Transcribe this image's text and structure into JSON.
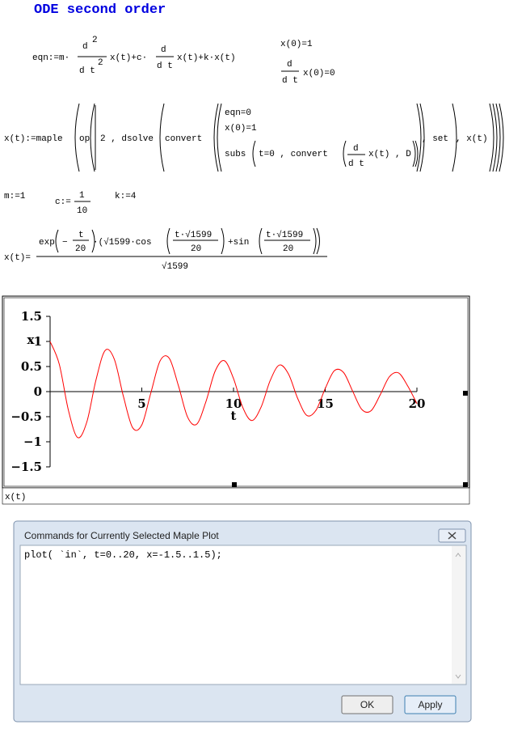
{
  "header": {
    "title": "ODE second order"
  },
  "math": {
    "eqn": {
      "lhs": "eqn:=m·",
      "d2_num": "d",
      "d2_num_exp": "2",
      "d2_den": "d t",
      "d2_den_exp": "2",
      "mid1": "x(t)+c·",
      "d1_num": "d",
      "d1_den": "d t",
      "rest": "x(t)+k·x(t)"
    },
    "ic": {
      "ic1": "x(0)=1",
      "d_num": "d",
      "d_den": "d t",
      "ic2": "x(0)=0"
    },
    "sol": {
      "lhs": "x(t):=maple",
      "op": "op",
      "arg1": "2 , dsolve",
      "convert": "convert",
      "s1": "eqn=0",
      "s2": "x(0)=1",
      "subs": "subs",
      "subs_arg": "t=0 , convert",
      "d_num": "d",
      "d_den": "d t",
      "subs_tail": "x(t) , D",
      "set": ", set",
      "tail": ", x(t)"
    },
    "params": {
      "m": "m:=1",
      "c_lhs": "c:=",
      "c_num": "1",
      "c_den": "10",
      "k": "k:=4"
    },
    "result": {
      "lhs": "x(t)=",
      "exp": "exp",
      "minus": "−",
      "e_num": "t",
      "e_den": "20",
      "sqrt_cos": "·(√1599·cos",
      "cos_num": "t·√1599",
      "cos_den": "20",
      "plus_sin": "+sin",
      "sin_num": "t·√1599",
      "sin_den": "20",
      "den": "√1599"
    }
  },
  "chart_data": {
    "type": "line",
    "x": [
      0,
      0.5,
      1,
      1.5,
      2,
      2.5,
      3,
      3.5,
      4,
      4.5,
      5,
      5.5,
      6,
      6.5,
      7,
      7.5,
      8,
      8.5,
      9,
      9.5,
      10,
      10.5,
      11,
      11.5,
      12,
      12.5,
      13,
      13.5,
      14,
      14.5,
      15,
      15.5,
      16,
      16.5,
      17,
      17.5,
      18,
      18.5,
      19,
      19.5,
      20
    ],
    "series": [
      {
        "name": "x(t)",
        "color": "#ff0000",
        "values": [
          1,
          0.547,
          -0.374,
          -0.915,
          -0.609,
          0.229,
          0.82,
          0.647,
          -0.099,
          -0.719,
          -0.664,
          -0.016,
          0.615,
          0.663,
          0.114,
          -0.511,
          -0.647,
          -0.196,
          0.409,
          0.617,
          0.261,
          -0.312,
          -0.577,
          -0.312,
          0.22,
          0.529,
          0.348,
          -0.137,
          -0.475,
          -0.37,
          0.061,
          0.417,
          0.381,
          0.005,
          -0.357,
          -0.381,
          -0.062,
          0.297,
          0.372,
          0.11,
          -0.239
        ]
      }
    ],
    "xlim": [
      0,
      20
    ],
    "ylim": [
      -1.5,
      1.5
    ],
    "xticks": [
      5,
      10,
      15,
      20
    ],
    "yticks": [
      1.5,
      1,
      0.5,
      0,
      {
        "value": -0.5,
        "label": "−0.5"
      },
      {
        "value": -1,
        "label": "−1"
      },
      {
        "value": -1.5,
        "label": "−1.5"
      }
    ],
    "x_label": "t",
    "y_label": "x"
  },
  "dialog": {
    "title": "Commands for Currently Selected Maple Plot",
    "command": "plot( `in`, t=0..20, x=-1.5..1.5);",
    "ok": "OK",
    "apply": "Apply"
  }
}
